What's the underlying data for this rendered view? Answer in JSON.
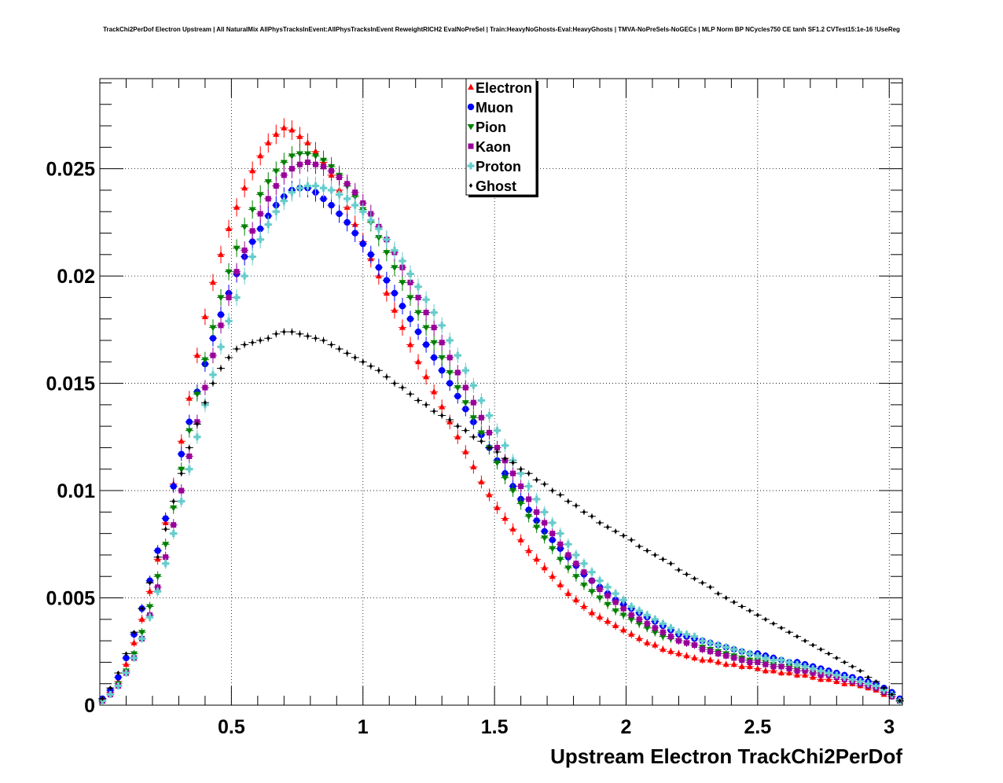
{
  "title": "TrackChi2PerDof Electron Upstream | All NaturalMix AllPhysTracksInEvent:AllPhysTracksInEvent ReweightRICH2 EvalNoPreSel | Train:HeavyNoGhosts-Eval:HeavyGhosts | TMVA-NoPreSels-NoGECs | MLP Norm BP NCycles750 CE tanh SF1.2 CVTest15:1e-16 !UseReg",
  "colors": {
    "Electron": "#ff0000",
    "Muon": "#0000ff",
    "Pion": "#008000",
    "Kaon": "#990099",
    "Proton": "#66cccc",
    "Ghost": "#000000"
  },
  "chart_data": {
    "type": "scatter",
    "title": "TrackChi2PerDof Electron Upstream | All NaturalMix AllPhysTracksInEvent:AllPhysTracksInEvent ReweightRICH2 EvalNoPreSel | Train:HeavyNoGhosts-Eval:HeavyGhosts | TMVA-NoPreSels-NoGECs | MLP Norm BP NCycles750 CE tanh SF1.2 CVTest15:1e-16 !UseReg",
    "xlabel": "Upstream Electron TrackChi2PerDof",
    "ylabel": "",
    "xlim": [
      0,
      3.05
    ],
    "ylim": [
      0,
      0.0292
    ],
    "xticks": [
      "0.5",
      "1",
      "1.5",
      "2",
      "2.5",
      "3"
    ],
    "yticks": [
      "0",
      "0.005",
      "0.01",
      "0.015",
      "0.02",
      "0.025"
    ],
    "grid": true,
    "legend_position": "top-center",
    "x": [
      0.01,
      0.04,
      0.07,
      0.1,
      0.13,
      0.16,
      0.19,
      0.22,
      0.25,
      0.28,
      0.31,
      0.34,
      0.37,
      0.4,
      0.43,
      0.46,
      0.49,
      0.52,
      0.55,
      0.58,
      0.61,
      0.64,
      0.67,
      0.7,
      0.73,
      0.76,
      0.79,
      0.82,
      0.85,
      0.88,
      0.91,
      0.94,
      0.97,
      1.0,
      1.03,
      1.06,
      1.09,
      1.12,
      1.15,
      1.18,
      1.21,
      1.24,
      1.27,
      1.3,
      1.33,
      1.36,
      1.39,
      1.42,
      1.45,
      1.48,
      1.51,
      1.54,
      1.57,
      1.6,
      1.63,
      1.66,
      1.69,
      1.72,
      1.75,
      1.78,
      1.81,
      1.84,
      1.87,
      1.9,
      1.93,
      1.96,
      1.99,
      2.02,
      2.05,
      2.08,
      2.11,
      2.14,
      2.17,
      2.2,
      2.23,
      2.26,
      2.29,
      2.32,
      2.35,
      2.38,
      2.41,
      2.44,
      2.47,
      2.5,
      2.53,
      2.56,
      2.59,
      2.62,
      2.65,
      2.68,
      2.71,
      2.74,
      2.77,
      2.8,
      2.83,
      2.86,
      2.89,
      2.92,
      2.95,
      2.98,
      3.01,
      3.04
    ],
    "series": [
      {
        "name": "Electron",
        "marker": "triangle-up",
        "values": [
          0.0002,
          0.0006,
          0.0011,
          0.0019,
          0.0029,
          0.004,
          0.0053,
          0.0068,
          0.0085,
          0.0103,
          0.0123,
          0.0143,
          0.0163,
          0.0181,
          0.0197,
          0.021,
          0.0222,
          0.0232,
          0.0241,
          0.0249,
          0.0256,
          0.0262,
          0.0266,
          0.0269,
          0.0268,
          0.0265,
          0.0262,
          0.0258,
          0.0253,
          0.0247,
          0.024,
          0.0232,
          0.0224,
          0.0216,
          0.0208,
          0.02,
          0.0192,
          0.0184,
          0.0176,
          0.0168,
          0.016,
          0.0153,
          0.0146,
          0.0139,
          0.0132,
          0.0125,
          0.0118,
          0.0111,
          0.0104,
          0.0098,
          0.0092,
          0.0087,
          0.0082,
          0.0077,
          0.0072,
          0.0068,
          0.0064,
          0.006,
          0.0056,
          0.0052,
          0.0049,
          0.0046,
          0.0043,
          0.0041,
          0.0039,
          0.0037,
          0.0035,
          0.0033,
          0.0031,
          0.0029,
          0.0028,
          0.0026,
          0.0025,
          0.0024,
          0.0023,
          0.0022,
          0.0021,
          0.0021,
          0.002,
          0.0019,
          0.0019,
          0.0018,
          0.0018,
          0.0017,
          0.0016,
          0.0016,
          0.0015,
          0.0015,
          0.0014,
          0.0014,
          0.0013,
          0.0012,
          0.0012,
          0.0011,
          0.001,
          0.001,
          0.0009,
          0.0008,
          0.0007,
          0.0005,
          0.0004,
          0.0002
        ]
      },
      {
        "name": "Muon",
        "marker": "circle",
        "values": [
          0.0003,
          0.0007,
          0.0013,
          0.0022,
          0.0033,
          0.0045,
          0.0058,
          0.0072,
          0.0087,
          0.0102,
          0.0117,
          0.0132,
          0.0146,
          0.0159,
          0.0171,
          0.0182,
          0.0192,
          0.0201,
          0.0209,
          0.0216,
          0.0222,
          0.0228,
          0.0233,
          0.0237,
          0.024,
          0.0241,
          0.0241,
          0.0239,
          0.0236,
          0.0233,
          0.0229,
          0.0225,
          0.022,
          0.0215,
          0.021,
          0.0204,
          0.0198,
          0.0192,
          0.0186,
          0.018,
          0.0174,
          0.0168,
          0.0162,
          0.0156,
          0.015,
          0.0144,
          0.0138,
          0.0132,
          0.0126,
          0.012,
          0.0114,
          0.0108,
          0.0102,
          0.0096,
          0.0091,
          0.0086,
          0.0081,
          0.0077,
          0.0073,
          0.0069,
          0.0065,
          0.0061,
          0.0058,
          0.0055,
          0.0052,
          0.0049,
          0.0047,
          0.0045,
          0.0043,
          0.0041,
          0.0039,
          0.0037,
          0.0035,
          0.0033,
          0.0032,
          0.0031,
          0.003,
          0.0029,
          0.0028,
          0.0027,
          0.0026,
          0.0025,
          0.0024,
          0.0024,
          0.0023,
          0.0022,
          0.0021,
          0.002,
          0.002,
          0.0019,
          0.0018,
          0.0017,
          0.0016,
          0.0015,
          0.0014,
          0.0013,
          0.0012,
          0.0011,
          0.001,
          0.0008,
          0.0006,
          0.0003
        ]
      },
      {
        "name": "Pion",
        "marker": "triangle-down",
        "values": [
          0.0002,
          0.0005,
          0.001,
          0.0016,
          0.0024,
          0.0034,
          0.0046,
          0.006,
          0.0075,
          0.0092,
          0.011,
          0.0128,
          0.0145,
          0.0161,
          0.0176,
          0.019,
          0.0202,
          0.0213,
          0.0223,
          0.0231,
          0.0238,
          0.0244,
          0.0249,
          0.0253,
          0.0256,
          0.0257,
          0.0257,
          0.0256,
          0.0254,
          0.0251,
          0.0247,
          0.0242,
          0.0237,
          0.0231,
          0.0225,
          0.0218,
          0.0211,
          0.0204,
          0.0197,
          0.019,
          0.0183,
          0.0176,
          0.0169,
          0.0162,
          0.0155,
          0.0148,
          0.0141,
          0.0134,
          0.0127,
          0.012,
          0.0113,
          0.0106,
          0.01,
          0.0094,
          0.0088,
          0.0083,
          0.0078,
          0.0073,
          0.0068,
          0.0064,
          0.006,
          0.0056,
          0.0053,
          0.005,
          0.0047,
          0.0044,
          0.0042,
          0.004,
          0.0038,
          0.0036,
          0.0034,
          0.0032,
          0.0031,
          0.003,
          0.0029,
          0.0028,
          0.0027,
          0.0026,
          0.0025,
          0.0024,
          0.0023,
          0.0022,
          0.0021,
          0.0021,
          0.002,
          0.0019,
          0.0018,
          0.0018,
          0.0017,
          0.0016,
          0.0015,
          0.0015,
          0.0014,
          0.0013,
          0.0012,
          0.0011,
          0.001,
          0.0009,
          0.0008,
          0.0006,
          0.0004,
          0.0002
        ]
      },
      {
        "name": "Kaon",
        "marker": "square",
        "values": [
          0.0002,
          0.0005,
          0.0009,
          0.0015,
          0.0022,
          0.0031,
          0.0042,
          0.0055,
          0.0069,
          0.0084,
          0.01,
          0.0116,
          0.0132,
          0.0148,
          0.0163,
          0.0177,
          0.019,
          0.0202,
          0.0212,
          0.0221,
          0.0229,
          0.0236,
          0.0242,
          0.0247,
          0.025,
          0.0252,
          0.0253,
          0.0252,
          0.0251,
          0.0249,
          0.0246,
          0.0243,
          0.0239,
          0.0234,
          0.0229,
          0.0223,
          0.0217,
          0.0211,
          0.0204,
          0.0197,
          0.019,
          0.0183,
          0.0176,
          0.0169,
          0.0162,
          0.0155,
          0.0148,
          0.0141,
          0.0134,
          0.0127,
          0.012,
          0.0114,
          0.0108,
          0.0102,
          0.0096,
          0.009,
          0.0085,
          0.008,
          0.0075,
          0.007,
          0.0066,
          0.0062,
          0.0058,
          0.0054,
          0.0051,
          0.0048,
          0.0045,
          0.0042,
          0.004,
          0.0038,
          0.0036,
          0.0034,
          0.0032,
          0.003,
          0.0029,
          0.0028,
          0.0026,
          0.0025,
          0.0024,
          0.0023,
          0.0022,
          0.0021,
          0.002,
          0.002,
          0.0019,
          0.0018,
          0.0018,
          0.0017,
          0.0016,
          0.0016,
          0.0015,
          0.0014,
          0.0014,
          0.0013,
          0.0012,
          0.0011,
          0.001,
          0.0009,
          0.0008,
          0.0006,
          0.0004,
          0.0002
        ]
      },
      {
        "name": "Proton",
        "marker": "cross",
        "values": [
          0.0002,
          0.0005,
          0.0009,
          0.0015,
          0.0022,
          0.0031,
          0.0041,
          0.0053,
          0.0066,
          0.008,
          0.0095,
          0.011,
          0.0125,
          0.014,
          0.0154,
          0.0167,
          0.0179,
          0.019,
          0.02,
          0.0209,
          0.0217,
          0.0224,
          0.023,
          0.0235,
          0.0239,
          0.0241,
          0.0242,
          0.0242,
          0.0241,
          0.024,
          0.0238,
          0.0236,
          0.0233,
          0.023,
          0.0226,
          0.0222,
          0.0217,
          0.0212,
          0.0207,
          0.0201,
          0.0195,
          0.0189,
          0.0183,
          0.0177,
          0.017,
          0.0163,
          0.0156,
          0.0149,
          0.0142,
          0.0135,
          0.0128,
          0.0121,
          0.0114,
          0.0108,
          0.0102,
          0.0096,
          0.009,
          0.0085,
          0.008,
          0.0075,
          0.007,
          0.0066,
          0.0062,
          0.0058,
          0.0055,
          0.0052,
          0.0049,
          0.0046,
          0.0044,
          0.0042,
          0.004,
          0.0038,
          0.0036,
          0.0034,
          0.0033,
          0.0032,
          0.003,
          0.0029,
          0.0028,
          0.0027,
          0.0026,
          0.0025,
          0.0024,
          0.0023,
          0.0022,
          0.0021,
          0.0021,
          0.002,
          0.0019,
          0.0018,
          0.0017,
          0.0016,
          0.0015,
          0.0014,
          0.0013,
          0.0012,
          0.0011,
          0.001,
          0.0009,
          0.0007,
          0.0005,
          0.0002
        ]
      },
      {
        "name": "Ghost",
        "marker": "small-diamond",
        "values": [
          0.0003,
          0.0008,
          0.0015,
          0.0024,
          0.0034,
          0.0045,
          0.0057,
          0.0069,
          0.0082,
          0.0095,
          0.0108,
          0.012,
          0.0131,
          0.0141,
          0.015,
          0.0157,
          0.0162,
          0.0166,
          0.0168,
          0.0169,
          0.017,
          0.0171,
          0.0173,
          0.0174,
          0.0174,
          0.0173,
          0.0172,
          0.0171,
          0.017,
          0.0168,
          0.0166,
          0.0164,
          0.0162,
          0.016,
          0.0158,
          0.0156,
          0.0153,
          0.015,
          0.0148,
          0.0145,
          0.0142,
          0.014,
          0.0137,
          0.0135,
          0.0133,
          0.013,
          0.0128,
          0.0125,
          0.0123,
          0.012,
          0.0118,
          0.0115,
          0.0113,
          0.011,
          0.0108,
          0.0105,
          0.0103,
          0.01,
          0.0098,
          0.0095,
          0.0093,
          0.009,
          0.0088,
          0.0085,
          0.0083,
          0.0081,
          0.0079,
          0.0077,
          0.0074,
          0.0072,
          0.007,
          0.0068,
          0.0066,
          0.0063,
          0.0061,
          0.0059,
          0.0057,
          0.0055,
          0.0052,
          0.005,
          0.0048,
          0.0046,
          0.0044,
          0.0042,
          0.004,
          0.0038,
          0.0036,
          0.0034,
          0.0032,
          0.003,
          0.0028,
          0.0026,
          0.0024,
          0.0022,
          0.002,
          0.0018,
          0.0016,
          0.0013,
          0.0011,
          0.0008,
          0.0005,
          0.0002
        ]
      }
    ]
  }
}
